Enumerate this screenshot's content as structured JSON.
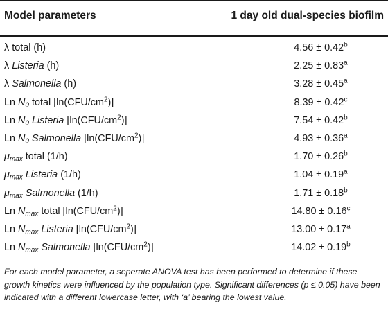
{
  "table": {
    "header": {
      "param_label": "Model parameters",
      "value_label": "1 day old dual-species biofilm"
    },
    "rows": [
      {
        "prefix": "λ",
        "sym": "",
        "sub": "",
        "name": "total",
        "name_italic": false,
        "unit": "(h)",
        "unit_sup": "",
        "unit_close": "",
        "value": "4.56 ± 0.42",
        "letter": "b"
      },
      {
        "prefix": "λ",
        "sym": "",
        "sub": "",
        "name": "Listeria",
        "name_italic": true,
        "unit": "(h)",
        "unit_sup": "",
        "unit_close": "",
        "value": "2.25 ± 0.83",
        "letter": "a"
      },
      {
        "prefix": "λ",
        "sym": "",
        "sub": "",
        "name": "Salmonella",
        "name_italic": true,
        "unit": "(h)",
        "unit_sup": "",
        "unit_close": "",
        "value": "3.28 ± 0.45",
        "letter": "a"
      },
      {
        "prefix": "Ln",
        "sym": "N",
        "sub": "0",
        "name": "total",
        "name_italic": false,
        "unit": "[ln(CFU/cm",
        "unit_sup": "2",
        "unit_close": ")]",
        "value": "8.39 ± 0.42",
        "letter": "c"
      },
      {
        "prefix": "Ln",
        "sym": "N",
        "sub": "0",
        "name": "Listeria",
        "name_italic": true,
        "unit": "[ln(CFU/cm",
        "unit_sup": "2",
        "unit_close": ")]",
        "value": "7.54 ± 0.42",
        "letter": "b"
      },
      {
        "prefix": "Ln",
        "sym": "N",
        "sub": "0",
        "name": "Salmonella",
        "name_italic": true,
        "unit": "[ln(CFU/cm",
        "unit_sup": "2",
        "unit_close": ")]",
        "value": "4.93 ± 0.36",
        "letter": "a"
      },
      {
        "prefix": "",
        "sym": "μ",
        "sub": "max",
        "name": "total",
        "name_italic": false,
        "unit": "(1/h)",
        "unit_sup": "",
        "unit_close": "",
        "value": "1.70 ± 0.26",
        "letter": "b"
      },
      {
        "prefix": "",
        "sym": "μ",
        "sub": "max",
        "name": "Listeria",
        "name_italic": true,
        "unit": "(1/h)",
        "unit_sup": "",
        "unit_close": "",
        "value": "1.04 ± 0.19",
        "letter": "a"
      },
      {
        "prefix": "",
        "sym": "μ",
        "sub": "max",
        "name": "Salmonella",
        "name_italic": true,
        "unit": "(1/h)",
        "unit_sup": "",
        "unit_close": "",
        "value": "1.71 ± 0.18",
        "letter": "b"
      },
      {
        "prefix": "Ln",
        "sym": "N",
        "sub": "max",
        "name": "total",
        "name_italic": false,
        "unit": "[ln(CFU/cm",
        "unit_sup": "2",
        "unit_close": ")]",
        "value": "14.80 ± 0.16",
        "letter": "c"
      },
      {
        "prefix": "Ln",
        "sym": "N",
        "sub": "max",
        "name": "Listeria",
        "name_italic": true,
        "unit": "[ln(CFU/cm",
        "unit_sup": "2",
        "unit_close": ")]",
        "value": "13.00 ± 0.17",
        "letter": "a"
      },
      {
        "prefix": "Ln",
        "sym": "N",
        "sub": "max",
        "name": "Salmonella",
        "name_italic": true,
        "unit": "[ln(CFU/cm",
        "unit_sup": "2",
        "unit_close": ")]",
        "value": "14.02 ± 0.19",
        "letter": "b"
      }
    ],
    "footnote": "For each model parameter, a seperate ANOVA test has been performed to determine if these growth kinetics were influenced by the population type. Significant differences (p ≤ 0.05) have been indicated with a different lowercase letter, with ‘a’ bearing the lowest value."
  }
}
